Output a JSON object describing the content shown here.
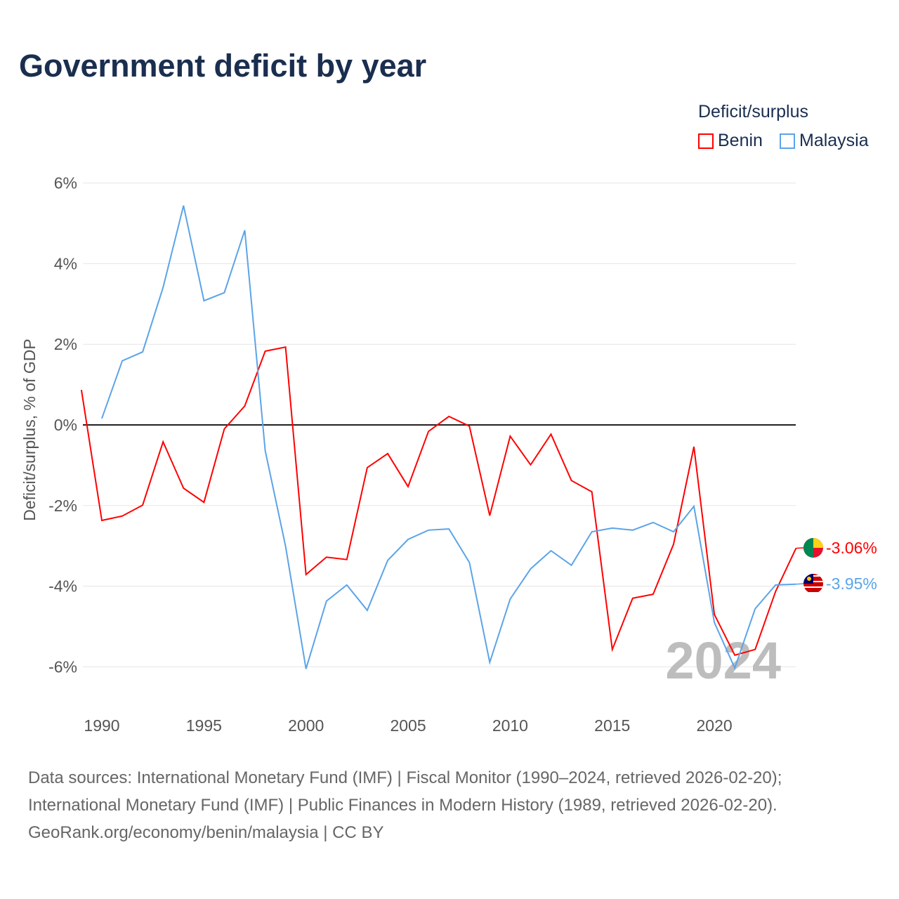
{
  "chart_data": {
    "type": "line",
    "title": "Government deficit by year",
    "ylabel": "Deficit/surplus, % of GDP",
    "xlabel": "",
    "ylim": [
      -7,
      6.5
    ],
    "xlim": [
      1989,
      2024
    ],
    "yticks": [
      6,
      4,
      2,
      0,
      -2,
      -4,
      -6
    ],
    "ytick_labels": [
      "6%",
      "4%",
      "2%",
      "0%",
      "-2%",
      "-4%",
      "-6%"
    ],
    "xticks": [
      1990,
      1995,
      2000,
      2005,
      2010,
      2015,
      2020
    ],
    "xtick_labels": [
      "1990",
      "1995",
      "2000",
      "2005",
      "2010",
      "2015",
      "2020"
    ],
    "grid": true,
    "legend_title": "Deficit/surplus",
    "legend_placement": "top-right",
    "year_watermark": "2024",
    "series": [
      {
        "name": "Benin",
        "color": "#ff0000",
        "end_label": "-3.06%",
        "x_start": 1989,
        "values": [
          0.87,
          -2.37,
          -2.26,
          -1.99,
          -0.42,
          -1.57,
          -1.92,
          -0.1,
          0.47,
          1.83,
          1.93,
          -3.71,
          -3.28,
          -3.34,
          -1.06,
          -0.71,
          -1.53,
          -0.16,
          0.21,
          -0.03,
          -2.25,
          -0.28,
          -0.99,
          -0.23,
          -1.38,
          -1.66,
          -5.57,
          -4.3,
          -4.2,
          -2.96,
          -0.54,
          -4.7,
          -5.71,
          -5.57,
          -4.13,
          -3.06
        ]
      },
      {
        "name": "Malaysia",
        "color": "#5ba4e8",
        "end_label": "-3.95%",
        "x_start": 1990,
        "values": [
          0.16,
          1.59,
          1.81,
          3.41,
          5.44,
          3.08,
          3.28,
          4.83,
          -0.64,
          -3.01,
          -6.05,
          -4.37,
          -3.97,
          -4.6,
          -3.36,
          -2.84,
          -2.61,
          -2.58,
          -3.41,
          -5.89,
          -4.32,
          -3.57,
          -3.12,
          -3.48,
          -2.65,
          -2.56,
          -2.61,
          -2.42,
          -2.65,
          -2.02,
          -4.9,
          -6.03,
          -4.56,
          -3.97,
          -3.95
        ]
      }
    ]
  },
  "footer": {
    "line1": "Data sources: International Monetary Fund (IMF) | Fiscal Monitor (1990–2024, retrieved 2026-02-20);",
    "line2": "International Monetary Fund (IMF) | Public Finances in Modern History (1989, retrieved 2026-02-20).",
    "line3": "GeoRank.org/economy/benin/malaysia | CC BY"
  }
}
